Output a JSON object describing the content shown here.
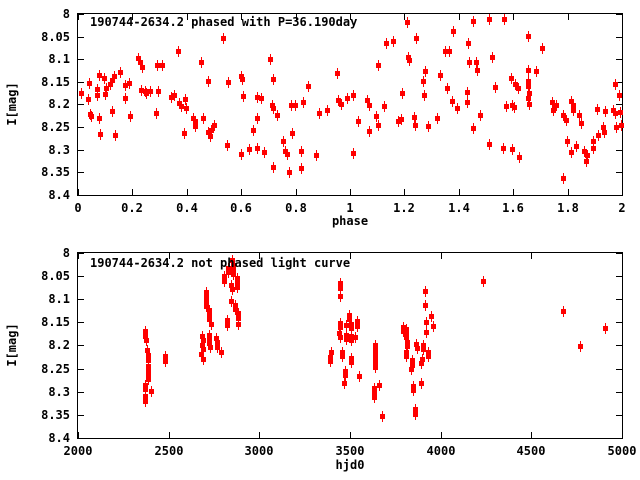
{
  "page": {
    "background": "#ffffff",
    "text_color": "#000000"
  },
  "chart_data": [
    {
      "type": "scatter",
      "title": "190744-2634.2 phased with P=36.190day",
      "xlabel": "phase",
      "ylabel": "I[mag]",
      "xlim": [
        0,
        2
      ],
      "ylim": [
        8.0,
        8.4
      ],
      "y_axis_inverted_magnitudes": true,
      "grid": false,
      "legend": "none",
      "marker_color": "#ff0000",
      "xticks": [
        0,
        0.2,
        0.4,
        0.6,
        0.8,
        1,
        1.2,
        1.4,
        1.6,
        1.8,
        2
      ],
      "xtick_labels": [
        "0",
        "0.2",
        "0.4",
        "0.6",
        "0.8",
        "1",
        "1.2",
        "1.4",
        "1.6",
        "1.8",
        "2"
      ],
      "yticks": [
        8,
        8.05,
        8.1,
        8.15,
        8.2,
        8.25,
        8.3,
        8.35,
        8.4
      ],
      "ytick_labels": [
        "8",
        "8.05",
        "8.1",
        "8.15",
        "8.2",
        "8.25",
        "8.3",
        "8.35",
        "8.4"
      ],
      "points": [
        [
          0.012,
          8.175
        ],
        [
          0.037,
          8.187
        ],
        [
          0.04,
          8.153
        ],
        [
          0.043,
          8.221
        ],
        [
          0.049,
          8.226
        ],
        [
          0.07,
          8.166
        ],
        [
          0.07,
          8.178
        ],
        [
          0.077,
          8.134
        ],
        [
          0.077,
          8.23
        ],
        [
          0.08,
          8.265
        ],
        [
          0.096,
          8.141
        ],
        [
          0.098,
          8.177
        ],
        [
          0.102,
          8.164
        ],
        [
          0.119,
          8.155
        ],
        [
          0.123,
          8.145
        ],
        [
          0.123,
          8.215
        ],
        [
          0.131,
          8.138
        ],
        [
          0.135,
          8.267
        ],
        [
          0.153,
          8.127
        ],
        [
          0.172,
          8.156
        ],
        [
          0.172,
          8.186
        ],
        [
          0.186,
          8.153
        ],
        [
          0.19,
          8.226
        ],
        [
          0.221,
          8.097
        ],
        [
          0.227,
          8.106
        ],
        [
          0.23,
          8.167
        ],
        [
          0.235,
          8.116
        ],
        [
          0.245,
          8.171
        ],
        [
          0.251,
          8.175
        ],
        [
          0.263,
          8.171
        ],
        [
          0.288,
          8.219
        ],
        [
          0.29,
          8.113
        ],
        [
          0.294,
          8.171
        ],
        [
          0.31,
          8.113
        ],
        [
          0.341,
          8.184
        ],
        [
          0.353,
          8.18
        ],
        [
          0.368,
          8.081
        ],
        [
          0.37,
          8.197
        ],
        [
          0.377,
          8.204
        ],
        [
          0.39,
          8.263
        ],
        [
          0.395,
          8.187
        ],
        [
          0.398,
          8.208
        ],
        [
          0.423,
          8.23
        ],
        [
          0.429,
          8.248
        ],
        [
          0.431,
          8.236
        ],
        [
          0.453,
          8.106
        ],
        [
          0.46,
          8.23
        ],
        [
          0.476,
          8.261
        ],
        [
          0.478,
          8.147
        ],
        [
          0.484,
          8.27
        ],
        [
          0.488,
          8.256
        ],
        [
          0.5,
          8.246
        ],
        [
          0.534,
          8.053
        ],
        [
          0.549,
          8.289
        ],
        [
          0.551,
          8.15
        ],
        [
          0.598,
          8.138
        ],
        [
          0.6,
          8.309
        ],
        [
          0.604,
          8.143
        ],
        [
          0.608,
          8.182
        ],
        [
          0.629,
          8.298
        ],
        [
          0.645,
          8.256
        ],
        [
          0.657,
          8.184
        ],
        [
          0.657,
          8.295
        ],
        [
          0.659,
          8.23
        ],
        [
          0.674,
          8.186
        ],
        [
          0.682,
          8.305
        ],
        [
          0.706,
          8.099
        ],
        [
          0.714,
          8.2
        ],
        [
          0.718,
          8.143
        ],
        [
          0.718,
          8.208
        ],
        [
          0.718,
          8.339
        ],
        [
          0.73,
          8.224
        ],
        [
          0.755,
          8.281
        ],
        [
          0.76,
          8.303
        ],
        [
          0.767,
          8.309
        ],
        [
          0.775,
          8.349
        ],
        [
          0.782,
          8.202
        ],
        [
          0.788,
          8.263
        ],
        [
          0.796,
          8.2
        ],
        [
          0.821,
          8.302
        ],
        [
          0.821,
          8.34
        ],
        [
          0.828,
          8.194
        ],
        [
          0.845,
          8.158
        ],
        [
          0.874,
          8.311
        ],
        [
          0.886,
          8.219
        ],
        [
          0.917,
          8.212
        ],
        [
          0.953,
          8.13
        ],
        [
          0.955,
          8.19
        ],
        [
          0.965,
          8.198
        ],
        [
          0.988,
          8.186
        ],
        [
          1.01,
          8.307
        ],
        [
          1.012,
          8.18
        ],
        [
          1.031,
          8.236
        ],
        [
          1.064,
          8.189
        ],
        [
          1.068,
          8.258
        ],
        [
          1.07,
          8.202
        ],
        [
          1.096,
          8.226
        ],
        [
          1.101,
          8.246
        ],
        [
          1.104,
          8.112
        ],
        [
          1.123,
          8.204
        ],
        [
          1.131,
          8.064
        ],
        [
          1.157,
          8.06
        ],
        [
          1.178,
          8.236
        ],
        [
          1.186,
          8.233
        ],
        [
          1.19,
          8.175
        ],
        [
          1.211,
          8.018
        ],
        [
          1.214,
          8.094
        ],
        [
          1.218,
          8.102
        ],
        [
          1.235,
          8.228
        ],
        [
          1.239,
          8.245
        ],
        [
          1.243,
          8.053
        ],
        [
          1.267,
          8.149
        ],
        [
          1.272,
          8.18
        ],
        [
          1.276,
          8.125
        ],
        [
          1.288,
          8.248
        ],
        [
          1.321,
          8.23
        ],
        [
          1.331,
          8.134
        ],
        [
          1.35,
          8.081
        ],
        [
          1.358,
          8.164
        ],
        [
          1.362,
          8.081
        ],
        [
          1.374,
          8.192
        ],
        [
          1.38,
          8.038
        ],
        [
          1.395,
          8.208
        ],
        [
          1.429,
          8.194
        ],
        [
          1.431,
          8.172
        ],
        [
          1.435,
          8.064
        ],
        [
          1.439,
          8.107
        ],
        [
          1.453,
          8.016
        ],
        [
          1.453,
          8.252
        ],
        [
          1.463,
          8.105
        ],
        [
          1.468,
          8.123
        ],
        [
          1.478,
          8.223
        ],
        [
          1.51,
          8.287
        ],
        [
          1.512,
          8.01
        ],
        [
          1.522,
          8.096
        ],
        [
          1.534,
          8.162
        ],
        [
          1.563,
          8.296
        ],
        [
          1.567,
          8.01
        ],
        [
          1.574,
          8.204
        ],
        [
          1.592,
          8.141
        ],
        [
          1.596,
          8.2
        ],
        [
          1.596,
          8.298
        ],
        [
          1.604,
          8.206
        ],
        [
          1.608,
          8.155
        ],
        [
          1.616,
          8.164
        ],
        [
          1.62,
          8.317
        ],
        [
          1.653,
          8.049
        ],
        [
          1.653,
          8.123
        ],
        [
          1.653,
          8.147
        ],
        [
          1.655,
          8.158
        ],
        [
          1.653,
          8.186
        ],
        [
          1.657,
          8.175
        ],
        [
          1.657,
          8.199
        ],
        [
          1.684,
          8.125
        ],
        [
          1.706,
          8.074
        ],
        [
          1.743,
          8.194
        ],
        [
          1.745,
          8.211
        ],
        [
          1.757,
          8.2
        ],
        [
          1.782,
          8.362
        ],
        [
          1.784,
          8.224
        ],
        [
          1.794,
          8.234
        ],
        [
          1.797,
          8.28
        ],
        [
          1.813,
          8.192
        ],
        [
          1.813,
          8.305
        ],
        [
          1.821,
          8.202
        ],
        [
          1.821,
          8.211
        ],
        [
          1.829,
          8.292
        ],
        [
          1.841,
          8.224
        ],
        [
          1.849,
          8.241
        ],
        [
          1.861,
          8.303
        ],
        [
          1.868,
          8.324
        ],
        [
          1.87,
          8.312
        ],
        [
          1.892,
          8.296
        ],
        [
          1.895,
          8.28
        ],
        [
          1.907,
          8.209
        ],
        [
          1.911,
          8.268
        ],
        [
          1.931,
          8.25
        ],
        [
          1.934,
          8.261
        ],
        [
          1.939,
          8.215
        ],
        [
          1.966,
          8.211
        ],
        [
          1.975,
          8.155
        ],
        [
          1.975,
          8.219
        ],
        [
          1.978,
          8.25
        ],
        [
          1.988,
          8.178
        ],
        [
          1.993,
          8.217
        ],
        [
          1.996,
          8.246
        ]
      ]
    },
    {
      "type": "scatter",
      "title": "190744-2634.2 not phased light curve",
      "xlabel": "hjd0",
      "ylabel": "I[mag]",
      "xlim": [
        2000,
        5000
      ],
      "ylim": [
        8.0,
        8.4
      ],
      "y_axis_inverted_magnitudes": true,
      "grid": false,
      "legend": "none",
      "marker_color": "#ff0000",
      "xticks": [
        2000,
        2500,
        3000,
        3500,
        4000,
        4500,
        5000
      ],
      "xtick_labels": [
        "2000",
        "2500",
        "3000",
        "3500",
        "4000",
        "4500",
        "5000"
      ],
      "yticks": [
        8,
        8.05,
        8.1,
        8.15,
        8.2,
        8.25,
        8.3,
        8.35,
        8.4
      ],
      "ytick_labels": [
        "8",
        "8.05",
        "8.1",
        "8.15",
        "8.2",
        "8.25",
        "8.3",
        "8.35",
        "8.4"
      ],
      "points": [
        [
          2367,
          8.319
        ],
        [
          2369,
          8.169
        ],
        [
          2369,
          8.285
        ],
        [
          2369,
          8.309
        ],
        [
          2371,
          8.179
        ],
        [
          2371,
          8.294
        ],
        [
          2372,
          8.189
        ],
        [
          2382,
          8.21
        ],
        [
          2383,
          8.22
        ],
        [
          2383,
          8.231
        ],
        [
          2383,
          8.272
        ],
        [
          2384,
          8.245
        ],
        [
          2384,
          8.263
        ],
        [
          2385,
          8.254
        ],
        [
          2401,
          8.299
        ],
        [
          2480,
          8.223
        ],
        [
          2481,
          8.234
        ],
        [
          2679,
          8.218
        ],
        [
          2685,
          8.179
        ],
        [
          2685,
          8.198
        ],
        [
          2687,
          8.189
        ],
        [
          2687,
          8.208
        ],
        [
          2687,
          8.229
        ],
        [
          2703,
          8.085
        ],
        [
          2703,
          8.104
        ],
        [
          2704,
          8.095
        ],
        [
          2705,
          8.114
        ],
        [
          2722,
          8.124
        ],
        [
          2722,
          8.177
        ],
        [
          2723,
          8.133
        ],
        [
          2723,
          8.186
        ],
        [
          2724,
          8.143
        ],
        [
          2724,
          8.195
        ],
        [
          2726,
          8.203
        ],
        [
          2735,
          8.153
        ],
        [
          2763,
          8.184
        ],
        [
          2765,
          8.193
        ],
        [
          2768,
          8.203
        ],
        [
          2790,
          8.213
        ],
        [
          2803,
          8.049
        ],
        [
          2807,
          8.061
        ],
        [
          2822,
          8.144
        ],
        [
          2824,
          8.155
        ],
        [
          2827,
          8.032
        ],
        [
          2829,
          8.042
        ],
        [
          2846,
          8.069
        ],
        [
          2846,
          8.104
        ],
        [
          2848,
          8.078
        ],
        [
          2850,
          8.014
        ],
        [
          2852,
          8.025
        ],
        [
          2853,
          8.035
        ],
        [
          2854,
          8.045
        ],
        [
          2864,
          8.112
        ],
        [
          2865,
          8.121
        ],
        [
          2874,
          8.054
        ],
        [
          2874,
          8.074
        ],
        [
          2876,
          8.063
        ],
        [
          2883,
          8.13
        ],
        [
          2883,
          8.153
        ],
        [
          2884,
          8.141
        ],
        [
          3390,
          8.234
        ],
        [
          3392,
          8.225
        ],
        [
          3395,
          8.215
        ],
        [
          3437,
          8.173
        ],
        [
          3442,
          8.065
        ],
        [
          3442,
          8.182
        ],
        [
          3443,
          8.076
        ],
        [
          3444,
          8.092
        ],
        [
          3445,
          8.151
        ],
        [
          3446,
          8.16
        ],
        [
          3456,
          8.215
        ],
        [
          3458,
          8.223
        ],
        [
          3464,
          8.28
        ],
        [
          3470,
          8.254
        ],
        [
          3472,
          8.263
        ],
        [
          3475,
          8.155
        ],
        [
          3475,
          8.177
        ],
        [
          3477,
          8.186
        ],
        [
          3493,
          8.133
        ],
        [
          3494,
          8.143
        ],
        [
          3503,
          8.153
        ],
        [
          3503,
          8.179
        ],
        [
          3503,
          8.227
        ],
        [
          3505,
          8.162
        ],
        [
          3505,
          8.189
        ],
        [
          3505,
          8.236
        ],
        [
          3530,
          8.182
        ],
        [
          3538,
          8.148
        ],
        [
          3539,
          8.157
        ],
        [
          3549,
          8.265
        ],
        [
          3631,
          8.292
        ],
        [
          3632,
          8.301
        ],
        [
          3633,
          8.311
        ],
        [
          3636,
          8.198
        ],
        [
          3637,
          8.208
        ],
        [
          3637,
          8.236
        ],
        [
          3638,
          8.218
        ],
        [
          3638,
          8.246
        ],
        [
          3639,
          8.227
        ],
        [
          3661,
          8.285
        ],
        [
          3674,
          8.353
        ],
        [
          3790,
          8.16
        ],
        [
          3792,
          8.169
        ],
        [
          3807,
          8.164
        ],
        [
          3809,
          8.173
        ],
        [
          3809,
          8.223
        ],
        [
          3810,
          8.182
        ],
        [
          3810,
          8.215
        ],
        [
          3812,
          8.193
        ],
        [
          3813,
          8.202
        ],
        [
          3838,
          8.251
        ],
        [
          3840,
          8.232
        ],
        [
          3842,
          8.241
        ],
        [
          3848,
          8.287
        ],
        [
          3849,
          8.297
        ],
        [
          3857,
          8.337
        ],
        [
          3858,
          8.347
        ],
        [
          3866,
          8.196
        ],
        [
          3867,
          8.205
        ],
        [
          3893,
          8.238
        ],
        [
          3893,
          8.281
        ],
        [
          3895,
          8.229
        ],
        [
          3903,
          8.198
        ],
        [
          3904,
          8.208
        ],
        [
          3912,
          8.112
        ],
        [
          3913,
          8.081
        ],
        [
          3918,
          8.15
        ],
        [
          3918,
          8.171
        ],
        [
          3931,
          8.213
        ],
        [
          3932,
          8.222
        ],
        [
          3944,
          8.136
        ],
        [
          3955,
          8.157
        ],
        [
          4234,
          8.061
        ],
        [
          4677,
          8.126
        ],
        [
          4766,
          8.202
        ],
        [
          4905,
          8.162
        ]
      ]
    }
  ]
}
